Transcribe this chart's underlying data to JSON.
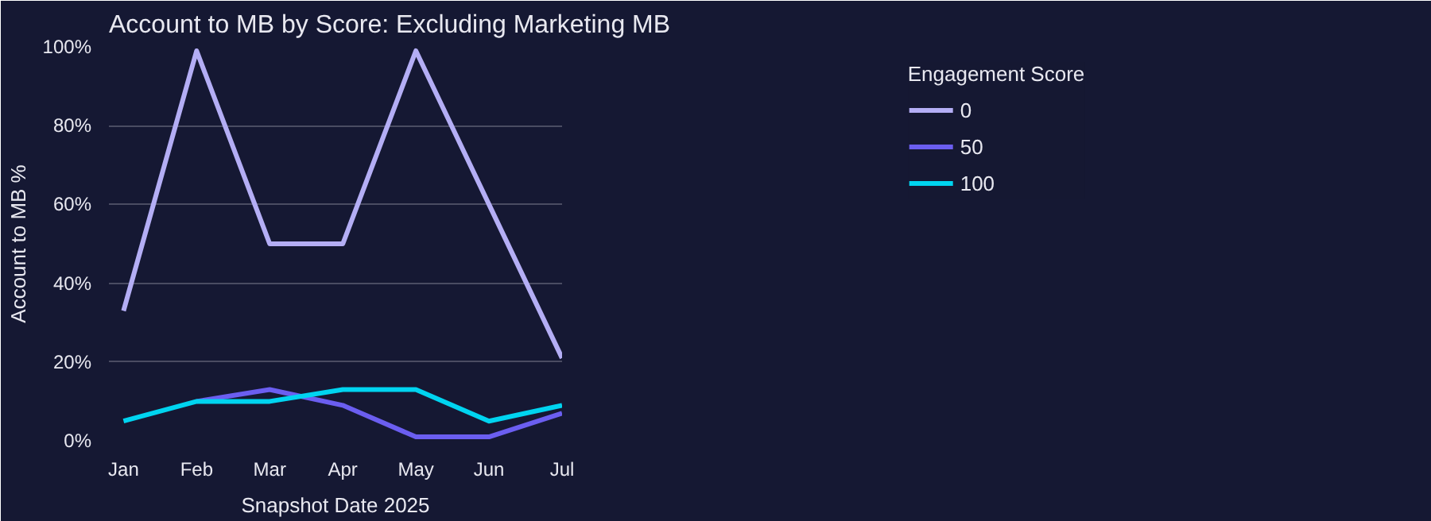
{
  "chart_data": {
    "type": "line",
    "title": "Account to MB by Score: Excluding Marketing MB",
    "xlabel": "Snapshot Date 2025",
    "ylabel": "Account to MB %",
    "legend_title": "Engagement Score",
    "categories": [
      "Jan",
      "Feb",
      "Mar",
      "Apr",
      "May",
      "Jun",
      "Jul"
    ],
    "series": [
      {
        "name": "0",
        "color": "#b4aef5",
        "values": [
          33,
          99,
          50,
          50,
          99,
          60,
          21
        ]
      },
      {
        "name": "50",
        "color": "#6b5ef0",
        "values": [
          null,
          10,
          13,
          9,
          1,
          1,
          7
        ]
      },
      {
        "name": "100",
        "color": "#00d4f0",
        "values": [
          5,
          10,
          10,
          13,
          13,
          5,
          9
        ]
      }
    ],
    "ylim": [
      0,
      100
    ],
    "yticks": [
      {
        "value": 0,
        "label": "0%"
      },
      {
        "value": 20,
        "label": "20%"
      },
      {
        "value": 40,
        "label": "40%"
      },
      {
        "value": 60,
        "label": "60%"
      },
      {
        "value": 80,
        "label": "80%"
      },
      {
        "value": 100,
        "label": "100%"
      }
    ],
    "grid": "y",
    "legend": "right",
    "line_style": "solid",
    "marker": "none"
  }
}
